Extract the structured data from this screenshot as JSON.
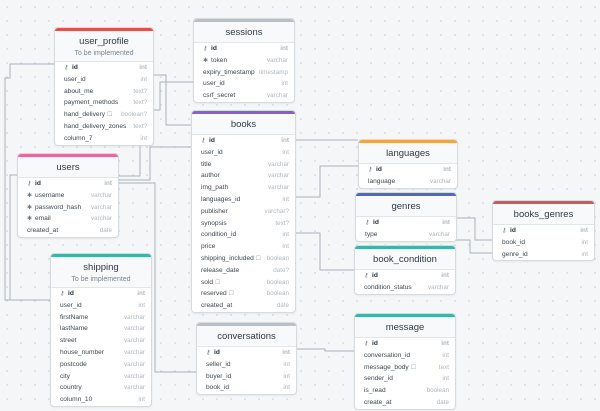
{
  "colors": {
    "red": "#e05252",
    "gray": "#b9c0c7",
    "purple": "#8e5bd6",
    "pink": "#e46a9e",
    "teal": "#3fb3a6",
    "orange": "#f0a44b",
    "blue": "#4a67c9"
  },
  "tables": {
    "user_profile": {
      "title": "user_profile",
      "subtitle": "To be implemented",
      "columns": [
        {
          "name": "id",
          "type": "int"
        },
        {
          "name": "user_id",
          "type": "int"
        },
        {
          "name": "about_me",
          "type": "text?"
        },
        {
          "name": "payment_methods",
          "type": "text?"
        },
        {
          "name": "hand_delivery",
          "type": "boolean?"
        },
        {
          "name": "hand_delivery_zones",
          "type": "text?"
        },
        {
          "name": "column_7",
          "type": "int"
        }
      ]
    },
    "sessions": {
      "title": "sessions",
      "columns": [
        {
          "name": "id",
          "type": "int"
        },
        {
          "name": "token",
          "type": "varchar"
        },
        {
          "name": "expiry_timestamp",
          "type": "timestamp"
        },
        {
          "name": "user_id",
          "type": "int"
        },
        {
          "name": "csrf_secret",
          "type": "varchar"
        }
      ]
    },
    "books": {
      "title": "books",
      "columns": [
        {
          "name": "id",
          "type": "int"
        },
        {
          "name": "user_id",
          "type": "int"
        },
        {
          "name": "title",
          "type": "varchar"
        },
        {
          "name": "author",
          "type": "varchar"
        },
        {
          "name": "img_path",
          "type": "varchar"
        },
        {
          "name": "languages_id",
          "type": "int"
        },
        {
          "name": "publisher",
          "type": "varchar?"
        },
        {
          "name": "synopsis",
          "type": "text?"
        },
        {
          "name": "condition_id",
          "type": "int"
        },
        {
          "name": "price",
          "type": "int"
        },
        {
          "name": "shipping_included",
          "type": "boolean"
        },
        {
          "name": "release_date",
          "type": "date?"
        },
        {
          "name": "sold",
          "type": "boolean"
        },
        {
          "name": "reserved",
          "type": "boolean"
        },
        {
          "name": "created_at",
          "type": "date"
        }
      ]
    },
    "users": {
      "title": "users",
      "columns": [
        {
          "name": "id",
          "type": "int"
        },
        {
          "name": "username",
          "type": "varchar"
        },
        {
          "name": "password_hash",
          "type": "varchar"
        },
        {
          "name": "email",
          "type": "varchar"
        },
        {
          "name": "created_at",
          "type": "date"
        }
      ]
    },
    "languages": {
      "title": "languages",
      "columns": [
        {
          "name": "id",
          "type": "int"
        },
        {
          "name": "language",
          "type": "varchar"
        }
      ]
    },
    "genres": {
      "title": "genres",
      "columns": [
        {
          "name": "id",
          "type": "int"
        },
        {
          "name": "type",
          "type": "varchar"
        }
      ]
    },
    "books_genres": {
      "title": "books_genres",
      "columns": [
        {
          "name": "id",
          "type": "int"
        },
        {
          "name": "book_id",
          "type": "int"
        },
        {
          "name": "genre_id",
          "type": "int"
        }
      ]
    },
    "book_condition": {
      "title": "book_condition",
      "columns": [
        {
          "name": "id",
          "type": "int"
        },
        {
          "name": "condition_status",
          "type": "varchar"
        }
      ]
    },
    "shipping": {
      "title": "shipping",
      "subtitle": "To be implemented",
      "columns": [
        {
          "name": "id",
          "type": "int"
        },
        {
          "name": "user_id",
          "type": "int"
        },
        {
          "name": "firstName",
          "type": "varchar"
        },
        {
          "name": "lastName",
          "type": "varchar"
        },
        {
          "name": "street",
          "type": "varchar"
        },
        {
          "name": "house_number",
          "type": "varchar"
        },
        {
          "name": "postcode",
          "type": "varchar"
        },
        {
          "name": "city",
          "type": "varchar"
        },
        {
          "name": "country",
          "type": "varchar"
        },
        {
          "name": "column_10",
          "type": "int"
        }
      ]
    },
    "conversations": {
      "title": "conversations",
      "columns": [
        {
          "name": "id",
          "type": "int"
        },
        {
          "name": "seller_id",
          "type": "int"
        },
        {
          "name": "buyer_id",
          "type": "int"
        },
        {
          "name": "book_id",
          "type": "int"
        }
      ]
    },
    "message": {
      "title": "message",
      "columns": [
        {
          "name": "id",
          "type": "int"
        },
        {
          "name": "conversation_id",
          "type": "int"
        },
        {
          "name": "message_body",
          "type": "text"
        },
        {
          "name": "sender_id",
          "type": "int"
        },
        {
          "name": "is_read",
          "type": "boolean"
        },
        {
          "name": "create_at",
          "type": "date"
        }
      ]
    }
  }
}
